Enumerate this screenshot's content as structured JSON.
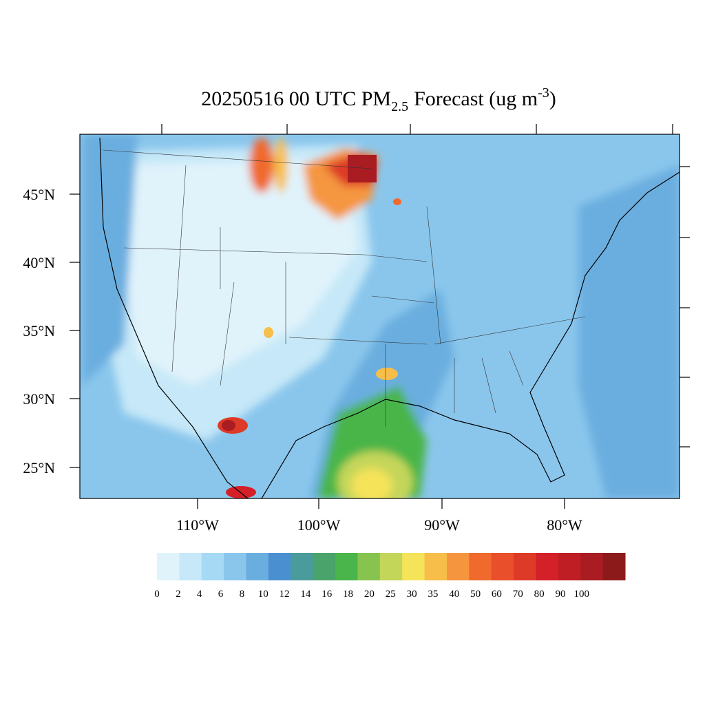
{
  "title": {
    "main": "20250516 00 UTC PM",
    "subscript": "2.5",
    "rest": "Forecast (ug m",
    "superscript": "-3",
    "close": ")"
  },
  "lat_labels": [
    "45°N",
    "40°N",
    "35°N",
    "30°N",
    "25°N"
  ],
  "lon_labels": [
    "110°W",
    "100°W",
    "90°W",
    "80°W"
  ],
  "colorbar": {
    "levels": [
      0,
      2,
      4,
      6,
      8,
      10,
      12,
      14,
      16,
      18,
      20,
      25,
      30,
      35,
      40,
      50,
      60,
      70,
      80,
      90,
      100
    ],
    "colors": [
      "#e0f3fb",
      "#c6e8f8",
      "#a5d9f4",
      "#8ac6ec",
      "#6aaedf",
      "#4a8fcf",
      "#4a9b9b",
      "#4aa36a",
      "#4ab54a",
      "#87c44f",
      "#c4d65a",
      "#f5e35a",
      "#f7be4a",
      "#f5963f",
      "#f06a2e",
      "#e84f2a",
      "#dd3a27",
      "#d42028",
      "#bf1e25",
      "#a91c22",
      "#8c1a1a"
    ]
  }
}
